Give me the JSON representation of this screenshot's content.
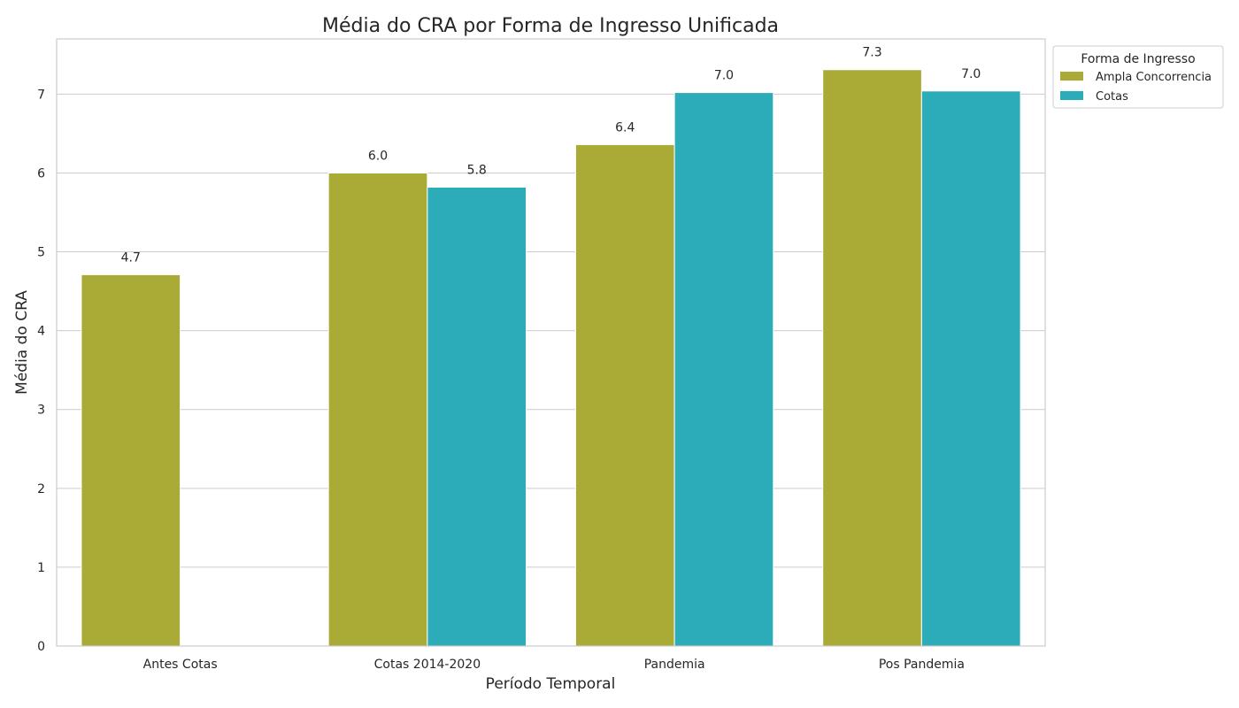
{
  "chart_data": {
    "type": "bar",
    "title": "Média do CRA por Forma de Ingresso Unificada",
    "xlabel": "Período Temporal",
    "ylabel": "Média do CRA",
    "categories": [
      "Antes Cotas",
      "Cotas 2014-2020",
      "Pandemia",
      "Pos Pandemia"
    ],
    "ylim": [
      0,
      7.7
    ],
    "yticks": [
      0,
      1,
      2,
      3,
      4,
      5,
      6,
      7
    ],
    "grid": true,
    "legend": {
      "title": "Forma de Ingresso",
      "placement": "outside-top-right"
    },
    "series": [
      {
        "name": "Ampla Concorrencia",
        "color": "#a9ab36",
        "values": [
          4.71,
          6.0,
          6.36,
          7.31
        ],
        "labels": [
          "4.7",
          "6.0",
          "6.4",
          "7.3"
        ]
      },
      {
        "name": "Cotas",
        "color": "#2cabb8",
        "values": [
          null,
          5.82,
          7.02,
          7.04
        ],
        "labels": [
          null,
          "5.8",
          "7.0",
          "7.0"
        ]
      }
    ]
  }
}
